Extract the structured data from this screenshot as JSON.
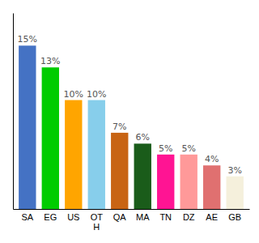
{
  "chart_data": {
    "type": "bar",
    "categories": [
      "SA",
      "EG",
      "US",
      "OT\nH",
      "QA",
      "MA",
      "TN",
      "DZ",
      "AE",
      "GB"
    ],
    "values": [
      15,
      13,
      10,
      10,
      7,
      6,
      5,
      5,
      4,
      3
    ],
    "value_labels": [
      "15%",
      "13%",
      "10%",
      "10%",
      "7%",
      "6%",
      "5%",
      "5%",
      "4%",
      "3%"
    ],
    "colors": [
      "#4472c4",
      "#00cc00",
      "#ffa500",
      "#87ceeb",
      "#c86414",
      "#1a5c1a",
      "#ff1493",
      "#ff9999",
      "#e07070",
      "#f5f0dc"
    ],
    "ylim": [
      0,
      18
    ],
    "data_labels": true,
    "tick_labels": "x"
  }
}
